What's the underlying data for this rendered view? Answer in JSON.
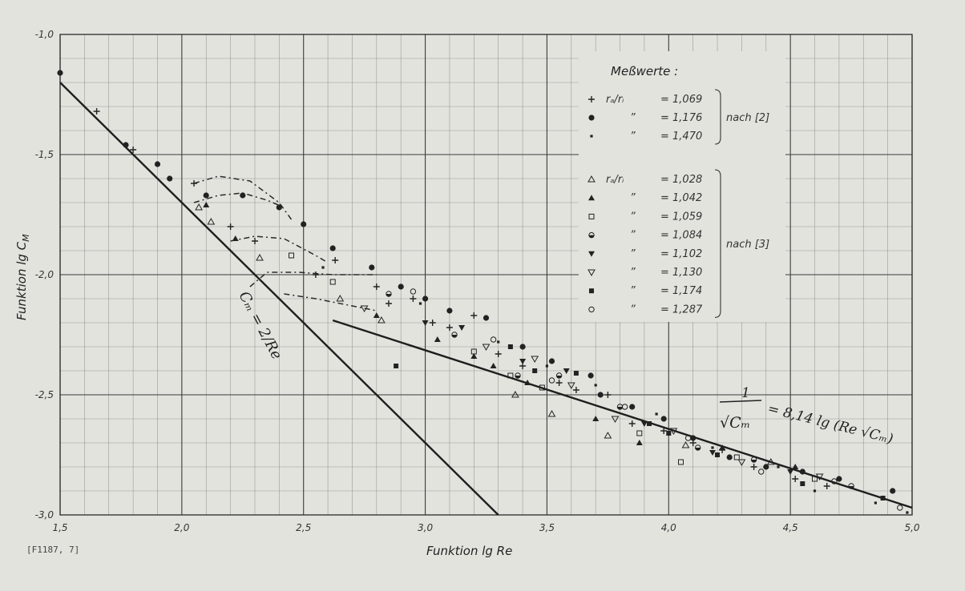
{
  "chart_data": {
    "type": "scatter",
    "title": "",
    "xlabel": "Funktion lg Re",
    "ylabel": "Funktion lg C",
    "ylabel_sub": "M",
    "xlim": [
      1.5,
      5.0
    ],
    "ylim": [
      -3.0,
      -1.0
    ],
    "log_scale": false,
    "grid": true,
    "x_ticks": [
      {
        "v": 1.5,
        "label": "1,5"
      },
      {
        "v": 2.0,
        "label": "2,0"
      },
      {
        "v": 2.5,
        "label": "2,5"
      },
      {
        "v": 3.0,
        "label": "3,0"
      },
      {
        "v": 3.5,
        "label": "3,5"
      },
      {
        "v": 4.0,
        "label": "4,0"
      },
      {
        "v": 4.5,
        "label": "4,5"
      },
      {
        "v": 5.0,
        "label": "5,0"
      }
    ],
    "y_ticks": [
      {
        "v": -1.0,
        "label": "-1,0"
      },
      {
        "v": -1.5,
        "label": "-1,5"
      },
      {
        "v": -2.0,
        "label": "-2,0"
      },
      {
        "v": -2.5,
        "label": "-2,5"
      },
      {
        "v": -3.0,
        "label": "-3,0"
      }
    ],
    "legend": {
      "title": "Meßwerte :",
      "position": "top-right",
      "groups": [
        {
          "source": "nach [2]",
          "entries": [
            {
              "marker": "plus",
              "ratio": "rₐ/rᵢ",
              "eq": "= 1,069"
            },
            {
              "marker": "dot",
              "ratio": "”",
              "eq": "= 1,176"
            },
            {
              "marker": "small",
              "ratio": "”",
              "eq": "= 1,470"
            }
          ]
        },
        {
          "source": "nach [3]",
          "entries": [
            {
              "marker": "tri-open",
              "ratio": "rₐ/rᵢ",
              "eq": "= 1,028"
            },
            {
              "marker": "tri-fill",
              "ratio": "”",
              "eq": "= 1,042"
            },
            {
              "marker": "sq-open",
              "ratio": "”",
              "eq": "= 1,059"
            },
            {
              "marker": "half",
              "ratio": "”",
              "eq": "= 1,084"
            },
            {
              "marker": "tri-down-fill",
              "ratio": "”",
              "eq": "= 1,102"
            },
            {
              "marker": "tri-down-open",
              "ratio": "”",
              "eq": "= 1,130"
            },
            {
              "marker": "sq-fill",
              "ratio": "”",
              "eq": "= 1,174"
            },
            {
              "marker": "circle-open",
              "ratio": "”",
              "eq": "= 1,287"
            }
          ]
        }
      ]
    },
    "annotations": {
      "laminar": "Cₘ = 2/Re",
      "turbulent_lhs_num": "1",
      "turbulent_lhs_den": "√Cₘ",
      "turbulent_rhs": "= 8,14 lg (Re √Cₘ)",
      "figure_ref": "[F1187, 7]"
    },
    "lines": [
      {
        "name": "laminar",
        "points": [
          [
            1.5,
            -1.2
          ],
          [
            3.3,
            -3.0
          ]
        ]
      },
      {
        "name": "turbulent",
        "points": [
          [
            2.62,
            -2.19
          ],
          [
            5.0,
            -2.97
          ]
        ]
      }
    ],
    "dashed_curves": [
      {
        "points": [
          [
            2.05,
            -1.62
          ],
          [
            2.15,
            -1.59
          ],
          [
            2.28,
            -1.61
          ],
          [
            2.4,
            -1.7
          ],
          [
            2.45,
            -1.77
          ]
        ]
      },
      {
        "points": [
          [
            2.05,
            -1.7
          ],
          [
            2.15,
            -1.67
          ],
          [
            2.25,
            -1.66
          ],
          [
            2.35,
            -1.69
          ],
          [
            2.42,
            -1.72
          ]
        ]
      },
      {
        "points": [
          [
            2.2,
            -1.86
          ],
          [
            2.3,
            -1.84
          ],
          [
            2.42,
            -1.85
          ],
          [
            2.55,
            -1.92
          ],
          [
            2.6,
            -1.95
          ]
        ]
      },
      {
        "points": [
          [
            2.28,
            -2.05
          ],
          [
            2.35,
            -1.99
          ],
          [
            2.48,
            -1.99
          ],
          [
            2.62,
            -2.0
          ],
          [
            2.8,
            -2.0
          ]
        ]
      },
      {
        "points": [
          [
            2.42,
            -2.08
          ],
          [
            2.55,
            -2.1
          ],
          [
            2.7,
            -2.13
          ],
          [
            2.8,
            -2.15
          ]
        ]
      }
    ],
    "series": [
      {
        "name": "rₐ/rᵢ = 1,069",
        "marker": "plus",
        "points": [
          [
            1.65,
            -1.32
          ],
          [
            1.8,
            -1.48
          ],
          [
            2.05,
            -1.62
          ],
          [
            2.2,
            -1.8
          ],
          [
            2.3,
            -1.86
          ],
          [
            2.63,
            -1.94
          ],
          [
            2.55,
            -2.0
          ],
          [
            2.8,
            -2.05
          ],
          [
            2.85,
            -2.12
          ],
          [
            2.95,
            -2.1
          ],
          [
            3.03,
            -2.2
          ],
          [
            3.1,
            -2.22
          ],
          [
            3.2,
            -2.17
          ],
          [
            3.3,
            -2.33
          ],
          [
            3.4,
            -2.38
          ],
          [
            3.55,
            -2.45
          ],
          [
            3.62,
            -2.48
          ],
          [
            3.75,
            -2.5
          ],
          [
            3.85,
            -2.62
          ],
          [
            3.98,
            -2.65
          ],
          [
            4.1,
            -2.7
          ],
          [
            4.22,
            -2.73
          ],
          [
            4.35,
            -2.8
          ],
          [
            4.52,
            -2.85
          ],
          [
            4.65,
            -2.88
          ]
        ]
      },
      {
        "name": "rₐ/rᵢ = 1,176",
        "marker": "dot",
        "points": [
          [
            1.5,
            -1.16
          ],
          [
            1.77,
            -1.46
          ],
          [
            1.9,
            -1.54
          ],
          [
            1.95,
            -1.6
          ],
          [
            2.1,
            -1.67
          ],
          [
            2.25,
            -1.67
          ],
          [
            2.4,
            -1.72
          ],
          [
            2.5,
            -1.79
          ],
          [
            2.62,
            -1.89
          ],
          [
            2.78,
            -1.97
          ],
          [
            2.9,
            -2.05
          ],
          [
            3.0,
            -2.1
          ],
          [
            3.1,
            -2.15
          ],
          [
            3.25,
            -2.18
          ],
          [
            3.4,
            -2.3
          ],
          [
            3.52,
            -2.36
          ],
          [
            3.68,
            -2.42
          ],
          [
            3.72,
            -2.5
          ],
          [
            3.85,
            -2.55
          ],
          [
            3.98,
            -2.6
          ],
          [
            4.1,
            -2.68
          ],
          [
            4.25,
            -2.76
          ],
          [
            4.4,
            -2.8
          ],
          [
            4.55,
            -2.82
          ],
          [
            4.7,
            -2.85
          ],
          [
            4.92,
            -2.9
          ]
        ]
      },
      {
        "name": "rₐ/rᵢ = 1,470",
        "marker": "small",
        "points": [
          [
            2.58,
            -1.97
          ],
          [
            2.98,
            -2.12
          ],
          [
            3.3,
            -2.28
          ],
          [
            3.5,
            -2.38
          ],
          [
            3.7,
            -2.46
          ],
          [
            3.95,
            -2.58
          ],
          [
            4.18,
            -2.72
          ],
          [
            4.45,
            -2.8
          ],
          [
            4.6,
            -2.9
          ],
          [
            4.85,
            -2.95
          ],
          [
            4.98,
            -2.99
          ]
        ]
      },
      {
        "name": "rₐ/rᵢ = 1,028",
        "marker": "tri-open",
        "points": [
          [
            2.07,
            -1.72
          ],
          [
            2.12,
            -1.78
          ],
          [
            2.32,
            -1.93
          ],
          [
            2.65,
            -2.1
          ],
          [
            2.82,
            -2.19
          ],
          [
            3.37,
            -2.5
          ],
          [
            3.52,
            -2.58
          ],
          [
            3.75,
            -2.67
          ],
          [
            4.07,
            -2.71
          ],
          [
            4.42,
            -2.78
          ]
        ]
      },
      {
        "name": "rₐ/rᵢ = 1,042",
        "marker": "tri-fill",
        "points": [
          [
            2.1,
            -1.71
          ],
          [
            2.22,
            -1.85
          ],
          [
            2.8,
            -2.17
          ],
          [
            3.05,
            -2.27
          ],
          [
            3.2,
            -2.34
          ],
          [
            3.28,
            -2.38
          ],
          [
            3.42,
            -2.45
          ],
          [
            3.7,
            -2.6
          ],
          [
            3.88,
            -2.7
          ],
          [
            4.22,
            -2.72
          ],
          [
            4.52,
            -2.8
          ]
        ]
      },
      {
        "name": "rₐ/rᵢ = 1,059",
        "marker": "sq-open",
        "points": [
          [
            2.45,
            -1.92
          ],
          [
            2.62,
            -2.03
          ],
          [
            3.2,
            -2.32
          ],
          [
            3.35,
            -2.42
          ],
          [
            3.48,
            -2.47
          ],
          [
            3.88,
            -2.66
          ],
          [
            4.05,
            -2.78
          ],
          [
            4.28,
            -2.76
          ],
          [
            4.6,
            -2.85
          ]
        ]
      },
      {
        "name": "rₐ/rᵢ = 1,084",
        "marker": "half",
        "points": [
          [
            2.85,
            -2.08
          ],
          [
            3.12,
            -2.25
          ],
          [
            3.38,
            -2.42
          ],
          [
            3.55,
            -2.42
          ],
          [
            3.8,
            -2.55
          ],
          [
            4.12,
            -2.72
          ],
          [
            4.35,
            -2.77
          ],
          [
            4.75,
            -2.88
          ]
        ]
      },
      {
        "name": "rₐ/rᵢ = 1,102",
        "marker": "tri-down-fill",
        "points": [
          [
            3.0,
            -2.2
          ],
          [
            3.15,
            -2.22
          ],
          [
            3.4,
            -2.36
          ],
          [
            3.58,
            -2.4
          ],
          [
            3.9,
            -2.62
          ],
          [
            4.18,
            -2.74
          ],
          [
            4.5,
            -2.82
          ]
        ]
      },
      {
        "name": "rₐ/rᵢ = 1,130",
        "marker": "tri-down-open",
        "points": [
          [
            2.75,
            -2.14
          ],
          [
            3.25,
            -2.3
          ],
          [
            3.45,
            -2.35
          ],
          [
            3.6,
            -2.46
          ],
          [
            3.78,
            -2.6
          ],
          [
            4.02,
            -2.65
          ],
          [
            4.3,
            -2.78
          ],
          [
            4.62,
            -2.84
          ]
        ]
      },
      {
        "name": "rₐ/rᵢ = 1,174",
        "marker": "sq-fill",
        "points": [
          [
            2.88,
            -2.38
          ],
          [
            3.35,
            -2.3
          ],
          [
            3.45,
            -2.4
          ],
          [
            3.62,
            -2.41
          ],
          [
            3.92,
            -2.62
          ],
          [
            4.0,
            -2.66
          ],
          [
            4.2,
            -2.75
          ],
          [
            4.55,
            -2.87
          ],
          [
            4.88,
            -2.93
          ]
        ]
      },
      {
        "name": "rₐ/rᵢ = 1,287",
        "marker": "circle-open",
        "points": [
          [
            2.95,
            -2.07
          ],
          [
            3.28,
            -2.27
          ],
          [
            3.52,
            -2.44
          ],
          [
            3.82,
            -2.55
          ],
          [
            4.08,
            -2.68
          ],
          [
            4.38,
            -2.82
          ],
          [
            4.68,
            -2.86
          ],
          [
            4.95,
            -2.97
          ]
        ]
      }
    ]
  }
}
